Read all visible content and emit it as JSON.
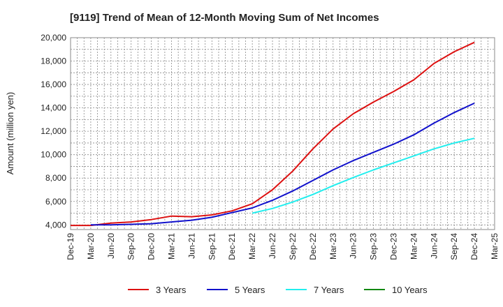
{
  "chart_data": {
    "type": "line",
    "title": "[9119]  Trend of Mean of 12-Month Moving Sum of Net Incomes",
    "xlabel": "",
    "ylabel": "Amount (million yen)",
    "ylim": [
      3600,
      20000
    ],
    "yticks": [
      4000,
      6000,
      8000,
      10000,
      12000,
      14000,
      16000,
      18000,
      20000
    ],
    "ytick_labels": [
      "4,000",
      "6,000",
      "8,000",
      "10,000",
      "12,000",
      "14,000",
      "16,000",
      "18,000",
      "20,000"
    ],
    "x_start": "Dec-19",
    "x_end": "Mar-25",
    "xtick_labels": [
      "Dec-19",
      "Mar-20",
      "Jun-20",
      "Sep-20",
      "Dec-20",
      "Mar-21",
      "Jun-21",
      "Sep-21",
      "Dec-21",
      "Mar-22",
      "Jun-22",
      "Sep-22",
      "Dec-22",
      "Mar-23",
      "Jun-23",
      "Sep-23",
      "Dec-23",
      "Mar-24",
      "Jun-24",
      "Sep-24",
      "Dec-24",
      "Mar-25"
    ],
    "grid": true,
    "legend_position": "bottom",
    "series": [
      {
        "name": "3 Years",
        "color": "#dd1111",
        "x": [
          "Dec-19",
          "Mar-20",
          "Jun-20",
          "Sep-20",
          "Dec-20",
          "Mar-21",
          "Jun-21",
          "Sep-21",
          "Dec-21",
          "Mar-22",
          "Jun-22",
          "Sep-22",
          "Dec-22",
          "Mar-23",
          "Jun-23",
          "Sep-23",
          "Dec-23",
          "Mar-24",
          "Jun-24",
          "Sep-24",
          "Dec-24"
        ],
        "values": [
          3950,
          3950,
          4150,
          4250,
          4450,
          4750,
          4700,
          4850,
          5200,
          5800,
          7000,
          8600,
          10500,
          12200,
          13500,
          14500,
          15400,
          16400,
          17800,
          18800,
          19600
        ]
      },
      {
        "name": "5 Years",
        "color": "#1111cc",
        "x": [
          "Mar-20",
          "Jun-20",
          "Sep-20",
          "Dec-20",
          "Mar-21",
          "Jun-21",
          "Sep-21",
          "Dec-21",
          "Mar-22",
          "Jun-22",
          "Sep-22",
          "Dec-22",
          "Mar-23",
          "Jun-23",
          "Sep-23",
          "Dec-23",
          "Mar-24",
          "Jun-24",
          "Sep-24",
          "Dec-24"
        ],
        "values": [
          4000,
          4000,
          4050,
          4100,
          4250,
          4400,
          4650,
          5050,
          5450,
          6100,
          6900,
          7800,
          8700,
          9500,
          10200,
          10900,
          11700,
          12700,
          13600,
          14400
        ]
      },
      {
        "name": "7 Years",
        "color": "#22eeee",
        "x": [
          "Mar-22",
          "Jun-22",
          "Sep-22",
          "Dec-22",
          "Mar-23",
          "Jun-23",
          "Sep-23",
          "Dec-23",
          "Mar-24",
          "Jun-24",
          "Sep-24",
          "Dec-24"
        ],
        "values": [
          5000,
          5400,
          5950,
          6600,
          7350,
          8050,
          8700,
          9300,
          9900,
          10500,
          11000,
          11400
        ]
      },
      {
        "name": "10 Years",
        "color": "#118811",
        "x": [],
        "values": []
      }
    ]
  }
}
